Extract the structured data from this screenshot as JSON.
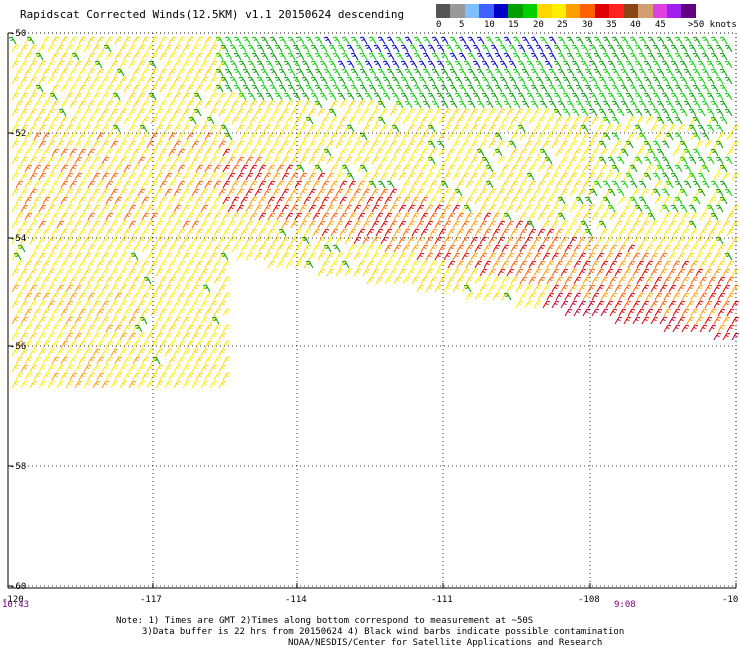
{
  "header": {
    "title": "Rapidscat Corrected Winds(12.5KM) v1.1 20150624 descending"
  },
  "legend": {
    "colors": [
      "#555555",
      "#999999",
      "#7fbfff",
      "#4060ff",
      "#0000c8",
      "#00a000",
      "#00d000",
      "#ffd800",
      "#ffee00",
      "#ffa000",
      "#ff6000",
      "#e00000",
      "#ff2020",
      "#8b4513",
      "#d2a070",
      "#e040e0",
      "#a020f0",
      "#600080"
    ],
    "labels": [
      "0",
      "5",
      "10",
      "15",
      "20",
      "25",
      "30",
      "35",
      "40",
      "45",
      ">50 knots"
    ]
  },
  "axes": {
    "lat_labels": [
      "-50",
      "-52",
      "-54",
      "-56",
      "-58",
      "-60"
    ],
    "lon_labels": [
      "-120",
      "-117",
      "-114",
      "-111",
      "-108",
      "-10"
    ]
  },
  "times": {
    "left": "10:43",
    "right": "9:08"
  },
  "notes": {
    "line1": "Note: 1) Times are GMT 2)Times along bottom correspond to measurement at ~50S",
    "line2": "3)Data buffer is 22 hrs from 20150624 4) Black wind barbs indicate possible contamination",
    "line3": "NOAA/NESDIS/Center for Satellite Applications and Research"
  },
  "palette": {
    "light_yellow": "#ffd800",
    "yellow": "#ffee00",
    "orange": "#ffa000",
    "dark_orange": "#ff6000",
    "red": "#e00000",
    "green": "#00a000",
    "bright_green": "#00d000",
    "blue": "#0000c8",
    "dark_red": "#c00030"
  }
}
